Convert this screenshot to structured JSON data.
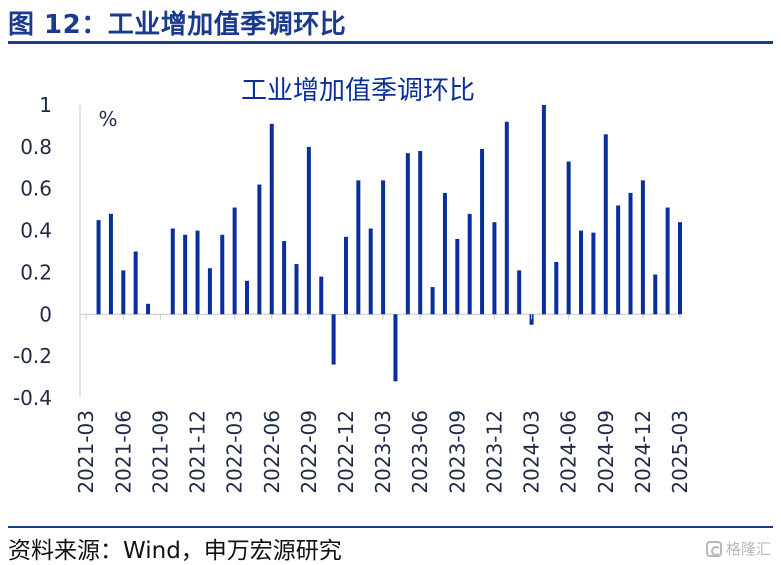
{
  "figure": {
    "header": "图 12：工业增加值季调环比",
    "source": "资料来源：Wind，申万宏源研究",
    "watermark": "格隆汇"
  },
  "colors": {
    "bar": "#0a2f9c",
    "header": "#1a3a8c",
    "axis": "#c8c8c8"
  },
  "chart_data": {
    "type": "bar",
    "title": "工业增加值季调环比",
    "unit_label": "%",
    "ylim": [
      -0.4,
      1.0
    ],
    "yticks": [
      -0.4,
      -0.2,
      0,
      0.2,
      0.4,
      0.6,
      0.8,
      1.0
    ],
    "ytick_labels": [
      "-0.4",
      "-0.2",
      "0",
      "0.2",
      "0.4",
      "0.6",
      "0.8",
      "1"
    ],
    "x_tick_labels": [
      "2021-03",
      "2021-06",
      "2021-09",
      "2021-12",
      "2022-03",
      "2022-06",
      "2022-09",
      "2022-12",
      "2023-03",
      "2023-06",
      "2023-09",
      "2023-12",
      "2024-03",
      "2024-06",
      "2024-09",
      "2024-12",
      "2025-03"
    ],
    "categories": [
      "2021-03",
      "2021-04",
      "2021-05",
      "2021-06",
      "2021-07",
      "2021-08",
      "2021-09",
      "2021-10",
      "2021-11",
      "2021-12",
      "2022-01",
      "2022-02",
      "2022-03",
      "2022-04",
      "2022-05",
      "2022-06",
      "2022-07",
      "2022-08",
      "2022-09",
      "2022-10",
      "2022-11",
      "2022-12",
      "2023-01",
      "2023-02",
      "2023-03",
      "2023-04",
      "2023-05",
      "2023-06",
      "2023-07",
      "2023-08",
      "2023-09",
      "2023-10",
      "2023-11",
      "2023-12",
      "2024-01",
      "2024-02",
      "2024-03",
      "2024-04",
      "2024-05",
      "2024-06",
      "2024-07",
      "2024-08",
      "2024-09",
      "2024-10",
      "2024-11",
      "2024-12",
      "2025-01",
      "2025-02",
      "2025-03"
    ],
    "values": [
      null,
      0.45,
      0.48,
      0.21,
      0.3,
      0.05,
      null,
      0.41,
      0.38,
      0.4,
      0.22,
      0.38,
      0.51,
      0.16,
      0.62,
      0.91,
      0.35,
      0.24,
      0.8,
      0.18,
      -0.24,
      0.37,
      0.64,
      0.41,
      0.64,
      -0.32,
      0.77,
      0.78,
      0.13,
      0.58,
      0.36,
      0.48,
      0.79,
      0.44,
      0.92,
      0.21,
      -0.05,
      1.0,
      0.25,
      0.73,
      0.4,
      0.39,
      0.86,
      0.52,
      0.58,
      0.64,
      0.19,
      0.51,
      0.44
    ],
    "grid": false,
    "legend": "none"
  }
}
